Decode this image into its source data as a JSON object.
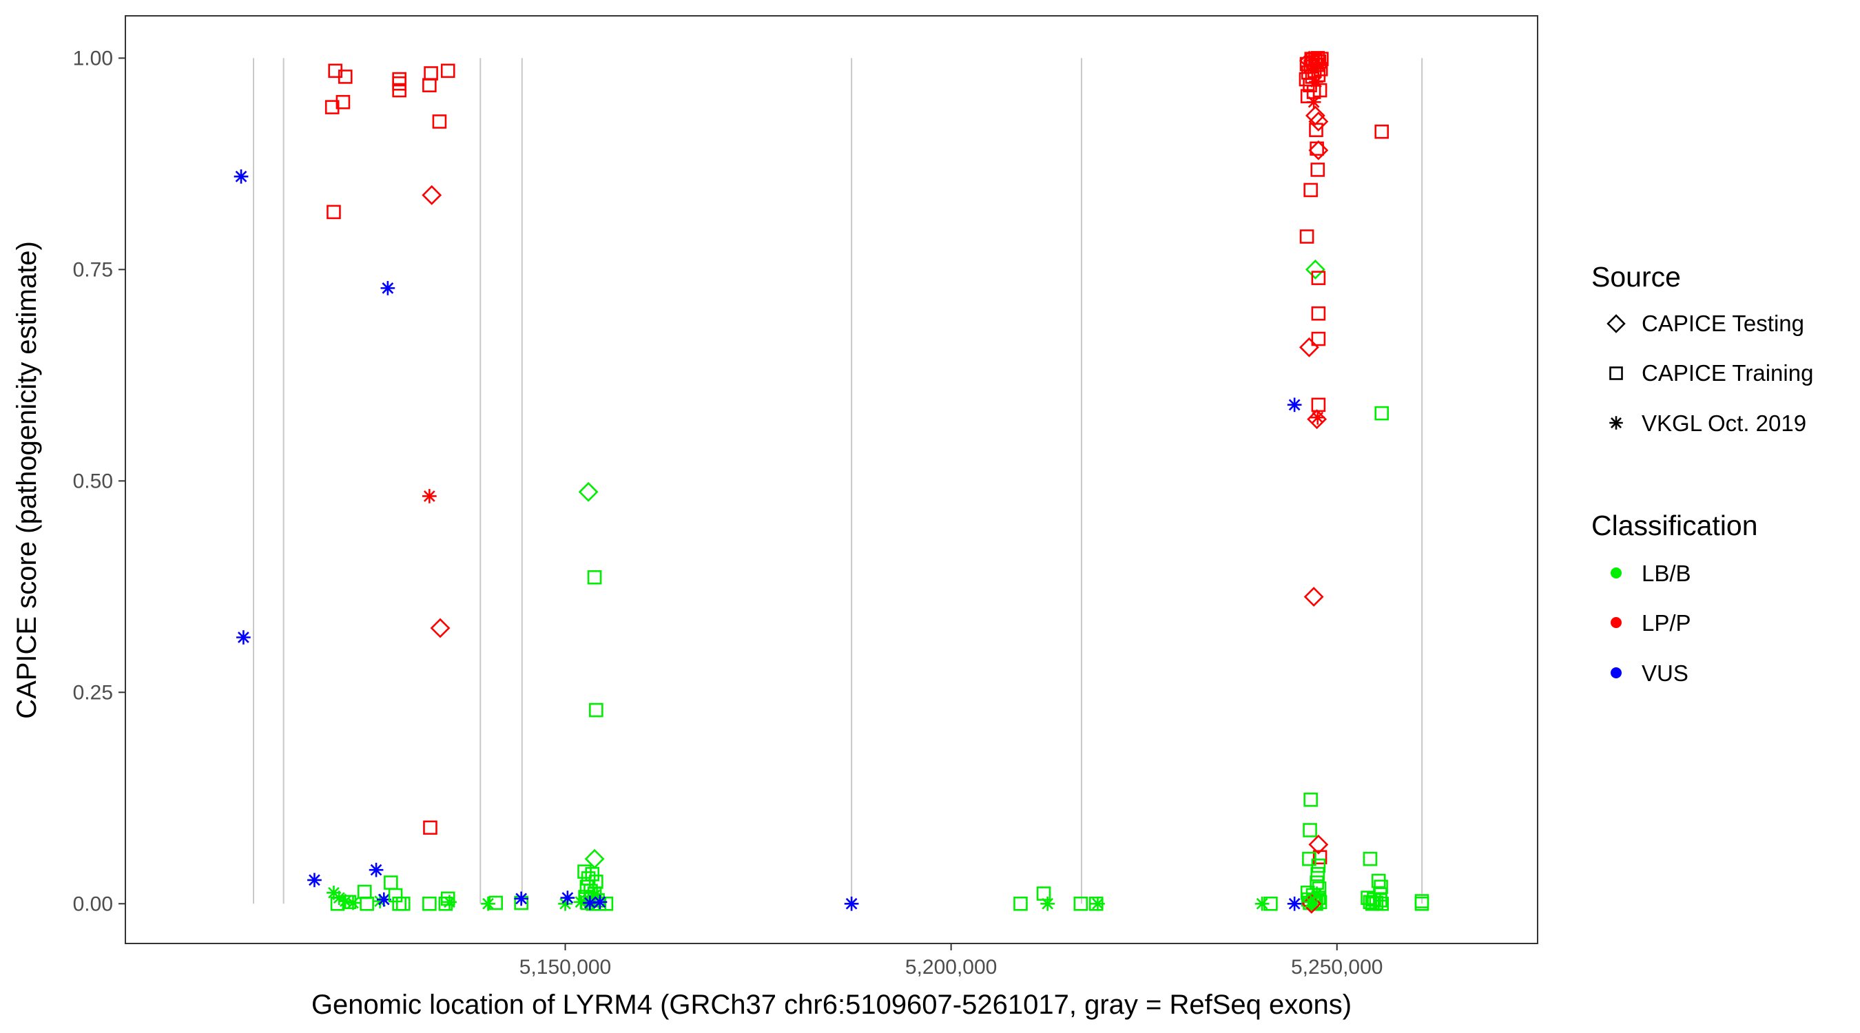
{
  "chart_data": {
    "type": "scatter",
    "xlabel": "Genomic location of LYRM4 (GRCh37 chr6:5109607-5261017, gray = RefSeq exons)",
    "ylabel": "CAPICE score (pathogenicity estimate)",
    "xlim": [
      5093000,
      5276000
    ],
    "ylim": [
      -0.047,
      1.05
    ],
    "x_ticks": [
      5150000,
      5200000,
      5250000
    ],
    "x_tick_labels": [
      "5,150,000",
      "5,200,000",
      "5,250,000"
    ],
    "y_ticks": [
      0.0,
      0.25,
      0.5,
      0.75,
      1.0
    ],
    "y_tick_labels": [
      "0.00",
      "0.25",
      "0.50",
      "0.75",
      "1.00"
    ],
    "grid": false,
    "exon_lines": [
      5109607,
      5113500,
      5139000,
      5144400,
      5187100,
      5216900,
      5261017
    ],
    "legend": {
      "placement": "right",
      "source_title": "Source",
      "source_items": [
        {
          "label": "CAPICE Testing",
          "shape": "diamond"
        },
        {
          "label": "CAPICE Training",
          "shape": "square"
        },
        {
          "label": "VKGL Oct. 2019",
          "shape": "asterisk"
        }
      ],
      "class_title": "Classification",
      "class_items": [
        {
          "label": "LB/B",
          "color": "#00ee00"
        },
        {
          "label": "LP/P",
          "color": "#ff0000"
        },
        {
          "label": "VUS",
          "color": "#0000ff"
        }
      ]
    },
    "colors": {
      "LB/B": "#00ee00",
      "LP/P": "#ff0000",
      "VUS": "#0000ff",
      "exon": "#c8c8c8",
      "axis_text": "#4d4d4d"
    },
    "points": [
      {
        "x": 5108000,
        "y": 0.86,
        "shape": "asterisk",
        "cls": "VUS"
      },
      {
        "x": 5108300,
        "y": 0.315,
        "shape": "asterisk",
        "cls": "VUS"
      },
      {
        "x": 5117500,
        "y": 0.028,
        "shape": "asterisk",
        "cls": "VUS"
      },
      {
        "x": 5120000,
        "y": 0.013,
        "shape": "asterisk",
        "cls": "LB/B"
      },
      {
        "x": 5120700,
        "y": 0.007,
        "shape": "asterisk",
        "cls": "LB/B"
      },
      {
        "x": 5121500,
        "y": 0.003,
        "shape": "asterisk",
        "cls": "LB/B"
      },
      {
        "x": 5122500,
        "y": 0.001,
        "shape": "asterisk",
        "cls": "LB/B"
      },
      {
        "x": 5120000,
        "y": 0.818,
        "shape": "square",
        "cls": "LP/P"
      },
      {
        "x": 5119800,
        "y": 0.942,
        "shape": "square",
        "cls": "LP/P"
      },
      {
        "x": 5120200,
        "y": 0.985,
        "shape": "square",
        "cls": "LP/P"
      },
      {
        "x": 5121200,
        "y": 0.948,
        "shape": "square",
        "cls": "LP/P"
      },
      {
        "x": 5121500,
        "y": 0.978,
        "shape": "square",
        "cls": "LP/P"
      },
      {
        "x": 5120500,
        "y": 0.0,
        "shape": "square",
        "cls": "LB/B"
      },
      {
        "x": 5122000,
        "y": 0.002,
        "shape": "square",
        "cls": "LB/B"
      },
      {
        "x": 5124000,
        "y": 0.014,
        "shape": "square",
        "cls": "LB/B"
      },
      {
        "x": 5124300,
        "y": 0.0,
        "shape": "square",
        "cls": "LB/B"
      },
      {
        "x": 5126000,
        "y": 0.003,
        "shape": "asterisk",
        "cls": "LB/B"
      },
      {
        "x": 5125500,
        "y": 0.04,
        "shape": "asterisk",
        "cls": "VUS"
      },
      {
        "x": 5126500,
        "y": 0.005,
        "shape": "asterisk",
        "cls": "VUS"
      },
      {
        "x": 5127000,
        "y": 0.728,
        "shape": "asterisk",
        "cls": "VUS"
      },
      {
        "x": 5127400,
        "y": 0.025,
        "shape": "square",
        "cls": "LB/B"
      },
      {
        "x": 5128000,
        "y": 0.01,
        "shape": "square",
        "cls": "LB/B"
      },
      {
        "x": 5128500,
        "y": 0.0,
        "shape": "square",
        "cls": "LB/B"
      },
      {
        "x": 5129000,
        "y": 0.0,
        "shape": "square",
        "cls": "LB/B"
      },
      {
        "x": 5128500,
        "y": 0.962,
        "shape": "square",
        "cls": "LP/P"
      },
      {
        "x": 5128500,
        "y": 0.97,
        "shape": "square",
        "cls": "LP/P"
      },
      {
        "x": 5128500,
        "y": 0.975,
        "shape": "square",
        "cls": "LP/P"
      },
      {
        "x": 5132400,
        "y": 0.968,
        "shape": "square",
        "cls": "LP/P"
      },
      {
        "x": 5132600,
        "y": 0.982,
        "shape": "square",
        "cls": "LP/P"
      },
      {
        "x": 5134800,
        "y": 0.985,
        "shape": "square",
        "cls": "LP/P"
      },
      {
        "x": 5133700,
        "y": 0.925,
        "shape": "square",
        "cls": "LP/P"
      },
      {
        "x": 5132700,
        "y": 0.838,
        "shape": "diamond",
        "cls": "LP/P"
      },
      {
        "x": 5132400,
        "y": 0.482,
        "shape": "asterisk",
        "cls": "LP/P"
      },
      {
        "x": 5133800,
        "y": 0.326,
        "shape": "diamond",
        "cls": "LP/P"
      },
      {
        "x": 5132500,
        "y": 0.09,
        "shape": "square",
        "cls": "LP/P"
      },
      {
        "x": 5132400,
        "y": 0.0,
        "shape": "square",
        "cls": "LB/B"
      },
      {
        "x": 5134500,
        "y": 0.0,
        "shape": "square",
        "cls": "LB/B"
      },
      {
        "x": 5134800,
        "y": 0.006,
        "shape": "square",
        "cls": "LB/B"
      },
      {
        "x": 5135000,
        "y": 0.002,
        "shape": "asterisk",
        "cls": "LB/B"
      },
      {
        "x": 5140000,
        "y": 0.0,
        "shape": "asterisk",
        "cls": "LB/B"
      },
      {
        "x": 5141000,
        "y": 0.001,
        "shape": "square",
        "cls": "LB/B"
      },
      {
        "x": 5144300,
        "y": 0.001,
        "shape": "square",
        "cls": "LB/B"
      },
      {
        "x": 5144300,
        "y": 0.006,
        "shape": "asterisk",
        "cls": "VUS"
      },
      {
        "x": 5150000,
        "y": 0.0,
        "shape": "asterisk",
        "cls": "LB/B"
      },
      {
        "x": 5150300,
        "y": 0.007,
        "shape": "asterisk",
        "cls": "VUS"
      },
      {
        "x": 5153000,
        "y": 0.487,
        "shape": "diamond",
        "cls": "LB/B"
      },
      {
        "x": 5153800,
        "y": 0.386,
        "shape": "square",
        "cls": "LB/B"
      },
      {
        "x": 5154000,
        "y": 0.229,
        "shape": "square",
        "cls": "LB/B"
      },
      {
        "x": 5153800,
        "y": 0.053,
        "shape": "diamond",
        "cls": "LB/B"
      },
      {
        "x": 5152500,
        "y": 0.038,
        "shape": "square",
        "cls": "LB/B"
      },
      {
        "x": 5153000,
        "y": 0.03,
        "shape": "square",
        "cls": "LB/B"
      },
      {
        "x": 5153500,
        "y": 0.035,
        "shape": "square",
        "cls": "LB/B"
      },
      {
        "x": 5154000,
        "y": 0.026,
        "shape": "square",
        "cls": "LB/B"
      },
      {
        "x": 5152800,
        "y": 0.02,
        "shape": "square",
        "cls": "LB/B"
      },
      {
        "x": 5153300,
        "y": 0.015,
        "shape": "square",
        "cls": "LB/B"
      },
      {
        "x": 5153800,
        "y": 0.012,
        "shape": "square",
        "cls": "LB/B"
      },
      {
        "x": 5152600,
        "y": 0.008,
        "shape": "square",
        "cls": "LB/B"
      },
      {
        "x": 5153400,
        "y": 0.006,
        "shape": "square",
        "cls": "LB/B"
      },
      {
        "x": 5154200,
        "y": 0.004,
        "shape": "square",
        "cls": "LB/B"
      },
      {
        "x": 5152900,
        "y": 0.001,
        "shape": "square",
        "cls": "LB/B"
      },
      {
        "x": 5153600,
        "y": 0.0,
        "shape": "square",
        "cls": "LB/B"
      },
      {
        "x": 5154400,
        "y": 0.0,
        "shape": "square",
        "cls": "LB/B"
      },
      {
        "x": 5155300,
        "y": 0.0,
        "shape": "square",
        "cls": "LB/B"
      },
      {
        "x": 5152000,
        "y": 0.002,
        "shape": "asterisk",
        "cls": "LB/B"
      },
      {
        "x": 5153000,
        "y": 0.004,
        "shape": "asterisk",
        "cls": "LB/B"
      },
      {
        "x": 5153800,
        "y": 0.01,
        "shape": "asterisk",
        "cls": "LB/B"
      },
      {
        "x": 5153200,
        "y": 0.001,
        "shape": "asterisk",
        "cls": "VUS"
      },
      {
        "x": 5154500,
        "y": 0.002,
        "shape": "asterisk",
        "cls": "VUS"
      },
      {
        "x": 5187100,
        "y": 0.0,
        "shape": "asterisk",
        "cls": "VUS"
      },
      {
        "x": 5209000,
        "y": 0.0,
        "shape": "square",
        "cls": "LB/B"
      },
      {
        "x": 5212000,
        "y": 0.012,
        "shape": "square",
        "cls": "LB/B"
      },
      {
        "x": 5212500,
        "y": 0.0,
        "shape": "asterisk",
        "cls": "LB/B"
      },
      {
        "x": 5216800,
        "y": 0.0,
        "shape": "square",
        "cls": "LB/B"
      },
      {
        "x": 5218800,
        "y": 0.0,
        "shape": "square",
        "cls": "LB/B"
      },
      {
        "x": 5219000,
        "y": 0.0,
        "shape": "asterisk",
        "cls": "LB/B"
      },
      {
        "x": 5240300,
        "y": 0.0,
        "shape": "asterisk",
        "cls": "LB/B"
      },
      {
        "x": 5241400,
        "y": 0.0,
        "shape": "square",
        "cls": "LB/B"
      },
      {
        "x": 5244500,
        "y": 0.0,
        "shape": "asterisk",
        "cls": "VUS"
      },
      {
        "x": 5244500,
        "y": 0.59,
        "shape": "asterisk",
        "cls": "VUS"
      },
      {
        "x": 5246100,
        "y": 0.789,
        "shape": "square",
        "cls": "LP/P"
      },
      {
        "x": 5246400,
        "y": 0.658,
        "shape": "diamond",
        "cls": "LP/P"
      },
      {
        "x": 5246600,
        "y": 0.844,
        "shape": "square",
        "cls": "LP/P"
      },
      {
        "x": 5247200,
        "y": 0.75,
        "shape": "diamond",
        "cls": "LB/B"
      },
      {
        "x": 5247600,
        "y": 0.74,
        "shape": "square",
        "cls": "LP/P"
      },
      {
        "x": 5247600,
        "y": 0.698,
        "shape": "square",
        "cls": "LP/P"
      },
      {
        "x": 5247600,
        "y": 0.668,
        "shape": "square",
        "cls": "LP/P"
      },
      {
        "x": 5247600,
        "y": 0.59,
        "shape": "square",
        "cls": "LP/P"
      },
      {
        "x": 5247400,
        "y": 0.573,
        "shape": "diamond",
        "cls": "LP/P"
      },
      {
        "x": 5247500,
        "y": 0.575,
        "shape": "asterisk",
        "cls": "LP/P"
      },
      {
        "x": 5247500,
        "y": 0.868,
        "shape": "square",
        "cls": "LP/P"
      },
      {
        "x": 5247400,
        "y": 0.893,
        "shape": "square",
        "cls": "LP/P"
      },
      {
        "x": 5247600,
        "y": 0.891,
        "shape": "diamond",
        "cls": "LP/P"
      },
      {
        "x": 5247300,
        "y": 0.915,
        "shape": "square",
        "cls": "LP/P"
      },
      {
        "x": 5247600,
        "y": 0.925,
        "shape": "diamond",
        "cls": "LP/P"
      },
      {
        "x": 5247200,
        "y": 0.932,
        "shape": "diamond",
        "cls": "LP/P"
      },
      {
        "x": 5247000,
        "y": 0.948,
        "shape": "asterisk",
        "cls": "LP/P"
      },
      {
        "x": 5246200,
        "y": 0.955,
        "shape": "square",
        "cls": "LP/P"
      },
      {
        "x": 5247000,
        "y": 0.96,
        "shape": "square",
        "cls": "LP/P"
      },
      {
        "x": 5247800,
        "y": 0.962,
        "shape": "square",
        "cls": "LP/P"
      },
      {
        "x": 5246500,
        "y": 0.968,
        "shape": "square",
        "cls": "LP/P"
      },
      {
        "x": 5247300,
        "y": 0.972,
        "shape": "asterisk",
        "cls": "LP/P"
      },
      {
        "x": 5246000,
        "y": 0.975,
        "shape": "square",
        "cls": "LP/P"
      },
      {
        "x": 5246800,
        "y": 0.978,
        "shape": "square",
        "cls": "LP/P"
      },
      {
        "x": 5247600,
        "y": 0.98,
        "shape": "square",
        "cls": "LP/P"
      },
      {
        "x": 5246300,
        "y": 0.983,
        "shape": "square",
        "cls": "LP/P"
      },
      {
        "x": 5247100,
        "y": 0.985,
        "shape": "square",
        "cls": "LP/P"
      },
      {
        "x": 5247900,
        "y": 0.987,
        "shape": "square",
        "cls": "LP/P"
      },
      {
        "x": 5246600,
        "y": 0.99,
        "shape": "square",
        "cls": "LP/P"
      },
      {
        "x": 5247400,
        "y": 0.992,
        "shape": "square",
        "cls": "LP/P"
      },
      {
        "x": 5246100,
        "y": 0.993,
        "shape": "square",
        "cls": "LP/P"
      },
      {
        "x": 5246900,
        "y": 0.995,
        "shape": "square",
        "cls": "LP/P"
      },
      {
        "x": 5247700,
        "y": 0.996,
        "shape": "square",
        "cls": "LP/P"
      },
      {
        "x": 5246400,
        "y": 0.997,
        "shape": "diamond",
        "cls": "LP/P"
      },
      {
        "x": 5247200,
        "y": 0.998,
        "shape": "square",
        "cls": "LP/P"
      },
      {
        "x": 5248000,
        "y": 0.999,
        "shape": "square",
        "cls": "LP/P"
      },
      {
        "x": 5246700,
        "y": 0.999,
        "shape": "square",
        "cls": "LP/P"
      },
      {
        "x": 5247500,
        "y": 1.0,
        "shape": "square",
        "cls": "LP/P"
      },
      {
        "x": 5247000,
        "y": 0.363,
        "shape": "diamond",
        "cls": "LP/P"
      },
      {
        "x": 5246600,
        "y": 0.123,
        "shape": "square",
        "cls": "LB/B"
      },
      {
        "x": 5246500,
        "y": 0.087,
        "shape": "square",
        "cls": "LB/B"
      },
      {
        "x": 5247600,
        "y": 0.07,
        "shape": "diamond",
        "cls": "LP/P"
      },
      {
        "x": 5247800,
        "y": 0.055,
        "shape": "square",
        "cls": "LP/P"
      },
      {
        "x": 5246400,
        "y": 0.053,
        "shape": "square",
        "cls": "LB/B"
      },
      {
        "x": 5247600,
        "y": 0.045,
        "shape": "square",
        "cls": "LB/B"
      },
      {
        "x": 5247500,
        "y": 0.035,
        "shape": "square",
        "cls": "LB/B"
      },
      {
        "x": 5247400,
        "y": 0.025,
        "shape": "square",
        "cls": "LB/B"
      },
      {
        "x": 5247700,
        "y": 0.018,
        "shape": "square",
        "cls": "LB/B"
      },
      {
        "x": 5246200,
        "y": 0.013,
        "shape": "square",
        "cls": "LB/B"
      },
      {
        "x": 5246900,
        "y": 0.01,
        "shape": "square",
        "cls": "LB/B"
      },
      {
        "x": 5247600,
        "y": 0.007,
        "shape": "square",
        "cls": "LB/B"
      },
      {
        "x": 5246300,
        "y": 0.005,
        "shape": "square",
        "cls": "LB/B"
      },
      {
        "x": 5247100,
        "y": 0.003,
        "shape": "square",
        "cls": "LB/B"
      },
      {
        "x": 5247800,
        "y": 0.002,
        "shape": "square",
        "cls": "LB/B"
      },
      {
        "x": 5246500,
        "y": 0.001,
        "shape": "square",
        "cls": "LB/B"
      },
      {
        "x": 5247300,
        "y": 0.0,
        "shape": "square",
        "cls": "LB/B"
      },
      {
        "x": 5246700,
        "y": 0.0,
        "shape": "diamond",
        "cls": "LP/P"
      },
      {
        "x": 5246600,
        "y": 0.002,
        "shape": "asterisk",
        "cls": "LB/B"
      },
      {
        "x": 5247400,
        "y": 0.012,
        "shape": "asterisk",
        "cls": "LB/B"
      },
      {
        "x": 5255800,
        "y": 0.913,
        "shape": "square",
        "cls": "LP/P"
      },
      {
        "x": 5255800,
        "y": 0.58,
        "shape": "square",
        "cls": "LB/B"
      },
      {
        "x": 5254300,
        "y": 0.053,
        "shape": "square",
        "cls": "LB/B"
      },
      {
        "x": 5255400,
        "y": 0.027,
        "shape": "square",
        "cls": "LB/B"
      },
      {
        "x": 5255700,
        "y": 0.02,
        "shape": "square",
        "cls": "LB/B"
      },
      {
        "x": 5255600,
        "y": 0.011,
        "shape": "square",
        "cls": "LB/B"
      },
      {
        "x": 5254000,
        "y": 0.007,
        "shape": "square",
        "cls": "LB/B"
      },
      {
        "x": 5254800,
        "y": 0.005,
        "shape": "square",
        "cls": "LB/B"
      },
      {
        "x": 5255600,
        "y": 0.004,
        "shape": "square",
        "cls": "LB/B"
      },
      {
        "x": 5254300,
        "y": 0.002,
        "shape": "square",
        "cls": "LB/B"
      },
      {
        "x": 5255100,
        "y": 0.001,
        "shape": "square",
        "cls": "LB/B"
      },
      {
        "x": 5255800,
        "y": 0.0,
        "shape": "square",
        "cls": "LB/B"
      },
      {
        "x": 5254600,
        "y": 0.0,
        "shape": "square",
        "cls": "LB/B"
      },
      {
        "x": 5261000,
        "y": 0.003,
        "shape": "square",
        "cls": "LB/B"
      },
      {
        "x": 5261000,
        "y": 0.0,
        "shape": "square",
        "cls": "LB/B"
      }
    ]
  }
}
